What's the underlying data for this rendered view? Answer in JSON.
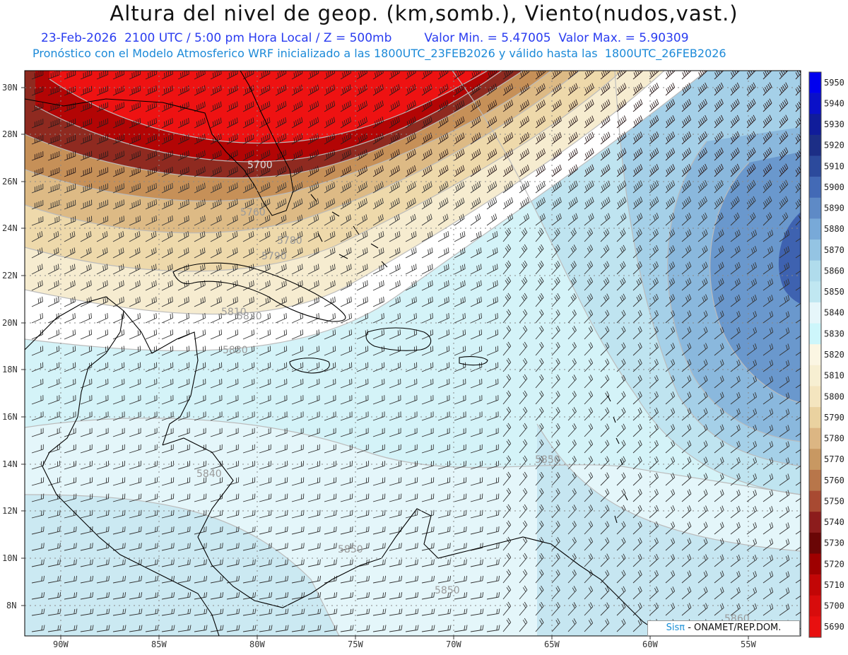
{
  "title": "Altura del nivel de geop. (km,somb.), Viento(nudos,vast.)",
  "subtitle_left": "23-Feb-2026  2100 UTC / 5:00 pm Hora Local / Z = 500mb",
  "subtitle_right": "Valor Min. = 5.47005  Valor Max. = 5.90309",
  "subtitle2": "Pronóstico con el Modelo Atmosferico WRF inicializado a las 1800UTC_23FEB2026 y válido hasta las  1800UTC_26FEB2026",
  "credit": {
    "brand": "Sisπ",
    "org": " - ONAMET/REP.DOM."
  },
  "map": {
    "lon_labels": [
      "90W",
      "85W",
      "80W",
      "75W",
      "70W",
      "65W",
      "60W",
      "55W"
    ],
    "lat_labels": [
      "8N",
      "10N",
      "12N",
      "14N",
      "16N",
      "18N",
      "20N",
      "22N",
      "24N",
      "26N",
      "28N",
      "30N"
    ],
    "contour_labels": [
      "5700",
      "5760",
      "5780",
      "5790",
      "5810",
      "5820",
      "5830",
      "5840",
      "5850",
      "5850",
      "5850",
      "5860"
    ]
  },
  "legend": {
    "values": [
      "5690",
      "5700",
      "5710",
      "5720",
      "5730",
      "5740",
      "5750",
      "5760",
      "5770",
      "5780",
      "5790",
      "5800",
      "5810",
      "5820",
      "5830",
      "5840",
      "5850",
      "5860",
      "5870",
      "5880",
      "5890",
      "5900",
      "5910",
      "5920",
      "5930",
      "5940",
      "5950"
    ],
    "colors": [
      "#e81010",
      "#d80c0c",
      "#c20606",
      "#9e0000",
      "#6a0606",
      "#8c1c1c",
      "#a84a32",
      "#b8764a",
      "#c89862",
      "#dcb683",
      "#ead2a0",
      "#f4e5bf",
      "#f7efd2",
      "#fbf6e3",
      "#cdf6fb",
      "#e6f6fa",
      "#c0e7f1",
      "#b0dcec",
      "#94c4e3",
      "#78a9d8",
      "#5e8ac6",
      "#436ab6",
      "#2c4a9c",
      "#1c2e86",
      "#101c9a",
      "#0a10c8",
      "#0000ee"
    ]
  }
}
